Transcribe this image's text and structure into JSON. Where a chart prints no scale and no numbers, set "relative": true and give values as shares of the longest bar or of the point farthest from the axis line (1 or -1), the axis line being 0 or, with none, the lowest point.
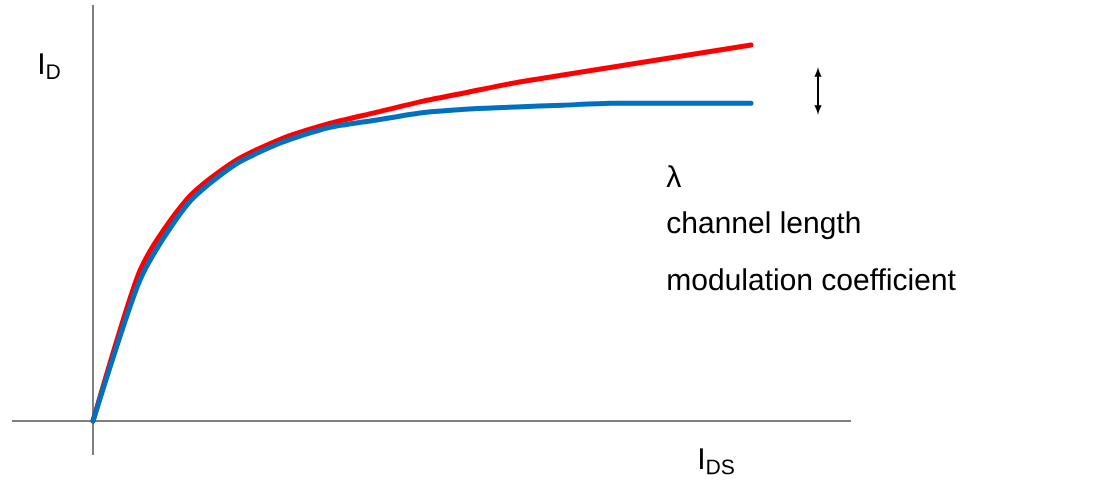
{
  "chart_data": {
    "type": "line",
    "relative": true,
    "xlabel": "I$_{DS}$",
    "ylabel": "I$_{D}$",
    "categories": [
      null,
      null,
      null,
      null,
      null,
      null,
      null,
      null,
      null,
      null,
      null,
      null,
      null,
      null,
      null
    ],
    "series": [
      {
        "color": "#ff0000",
        "values": [
          0,
          0.4,
          0.59,
          0.69,
          0.75,
          0.79,
          0.82,
          0.85,
          0.875,
          0.9,
          0.92,
          0.94,
          0.96,
          0.98,
          1
        ]
      },
      {
        "color": "#0070c0",
        "values": [
          0,
          0.375,
          0.575,
          0.68,
          0.74,
          0.78,
          0.8,
          0.82,
          0.83,
          0.835,
          0.84,
          0.845,
          0.845,
          0.845,
          0.845
        ]
      }
    ],
    "annotations": [
      "λ",
      "channel length",
      "modulation coefficient"
    ],
    "line_style": "solid"
  }
}
